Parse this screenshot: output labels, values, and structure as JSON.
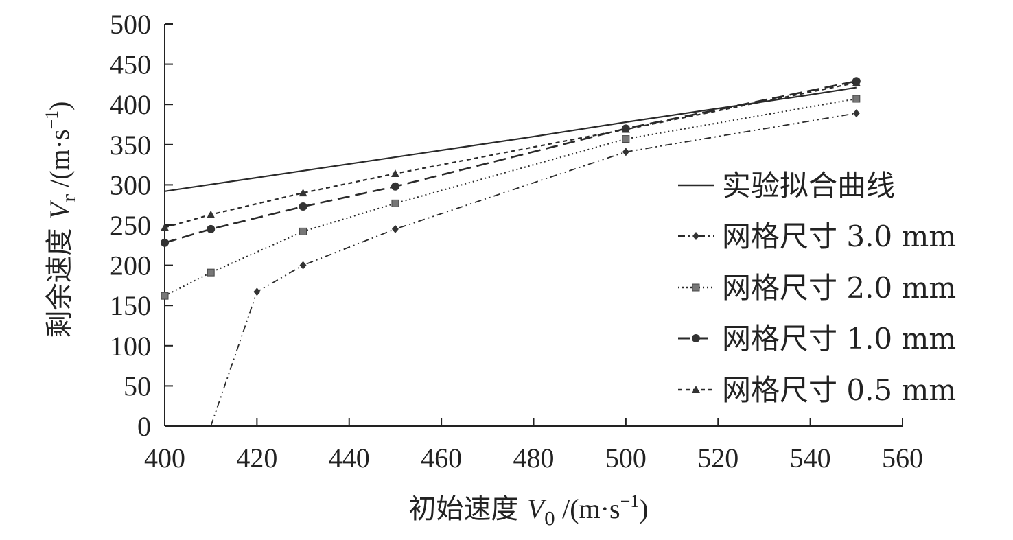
{
  "chart_data": {
    "type": "line",
    "xlabel": {
      "prefix": "初始速度 ",
      "var": "V",
      "sub": "0",
      "unit_open": " /(m·s",
      "sup": "−1",
      "unit_close": ")"
    },
    "ylabel": {
      "prefix": "剩余速度 ",
      "var": "V",
      "sub": "r",
      "unit_open": " /(m·s",
      "sup": "−1",
      "unit_close": ")"
    },
    "xlim": [
      400,
      560
    ],
    "ylim": [
      0,
      500
    ],
    "xticks": [
      400,
      420,
      440,
      460,
      480,
      500,
      520,
      540,
      560
    ],
    "yticks": [
      0,
      50,
      100,
      150,
      200,
      250,
      300,
      350,
      400,
      450,
      500
    ],
    "grid": false,
    "legend_position": "right",
    "series": [
      {
        "name": "实验拟合曲线",
        "style": "solid",
        "marker": "none",
        "x": [
          400,
          420,
          440,
          460,
          480,
          500,
          520,
          540,
          550
        ],
        "y": [
          292,
          309,
          326,
          343,
          360,
          378,
          395,
          412,
          421
        ]
      },
      {
        "name": "网格尺寸 3.0 mm",
        "style": "dashdotdot",
        "marker": "diamond",
        "x": [
          410,
          420,
          430,
          450,
          500,
          550
        ],
        "y": [
          0,
          167,
          200,
          245,
          341,
          389
        ],
        "marked": [
          false,
          true,
          true,
          true,
          true,
          true
        ]
      },
      {
        "name": "网格尺寸 2.0 mm",
        "style": "dotted",
        "marker": "square",
        "x": [
          400,
          410,
          430,
          450,
          500,
          550
        ],
        "y": [
          162,
          191,
          242,
          277,
          357,
          407
        ]
      },
      {
        "name": "网格尺寸 1.0 mm",
        "style": "longdash",
        "marker": "circle",
        "x": [
          400,
          410,
          430,
          450,
          500,
          550
        ],
        "y": [
          228,
          245,
          273,
          298,
          370,
          429
        ]
      },
      {
        "name": "网格尺寸 0.5 mm",
        "style": "shortdash",
        "marker": "triangle",
        "x": [
          400,
          410,
          430,
          450,
          500,
          550
        ],
        "y": [
          247,
          263,
          290,
          314,
          369,
          427
        ]
      }
    ]
  }
}
